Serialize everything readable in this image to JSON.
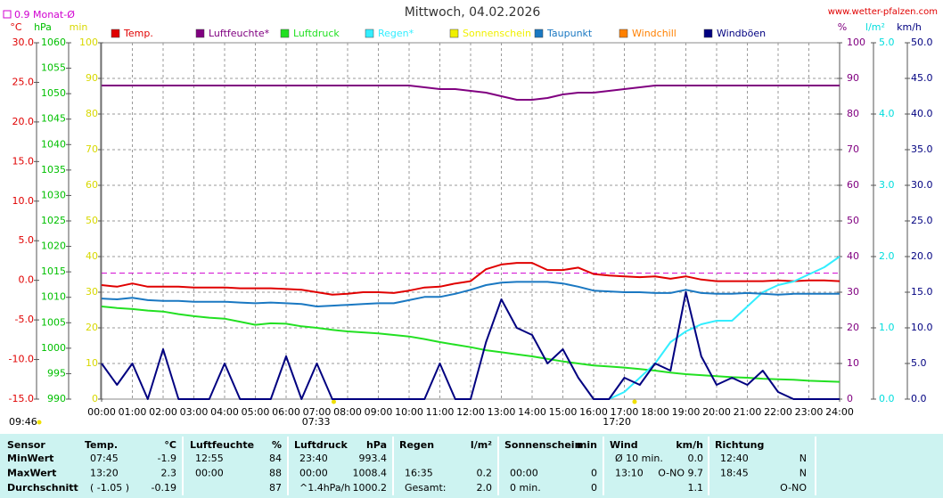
{
  "chart_data": {
    "type": "line",
    "title": "Mittwoch, 04.02.2026",
    "site": "www.wetter-pfalzen.com",
    "reference": {
      "value": 0.9,
      "label": "0.9 Monat-Ø",
      "color": "#d000d0",
      "axis": 0
    },
    "grid": true,
    "x": [
      0,
      0.5,
      1,
      1.5,
      2,
      2.5,
      3,
      3.5,
      4,
      4.5,
      5,
      5.5,
      6,
      6.5,
      7,
      7.5,
      8,
      8.5,
      9,
      9.5,
      10,
      10.5,
      11,
      11.5,
      12,
      12.5,
      13,
      13.5,
      14,
      14.5,
      15,
      15.5,
      16,
      16.5,
      17,
      17.5,
      18,
      18.5,
      19,
      19.5,
      20,
      20.5,
      21,
      21.5,
      22,
      22.5,
      23,
      23.5,
      24
    ],
    "xlim": [
      0,
      24
    ],
    "xticks": [
      {
        "value": 0,
        "label": "00:00"
      },
      {
        "value": 1,
        "label": "01:00"
      },
      {
        "value": 2,
        "label": "02:00"
      },
      {
        "value": 3,
        "label": "03:00"
      },
      {
        "value": 4,
        "label": "04:00"
      },
      {
        "value": 5,
        "label": "05:00"
      },
      {
        "value": 6,
        "label": "06:00"
      },
      {
        "value": 7,
        "label": "07:00"
      },
      {
        "value": 8,
        "label": "08:00"
      },
      {
        "value": 9,
        "label": "09:00"
      },
      {
        "value": 10,
        "label": "10:00"
      },
      {
        "value": 11,
        "label": "11:00"
      },
      {
        "value": 12,
        "label": "12:00"
      },
      {
        "value": 13,
        "label": "13:00"
      },
      {
        "value": 14,
        "label": "14:00"
      },
      {
        "value": 15,
        "label": "15:00"
      },
      {
        "value": 16,
        "label": "16:00"
      },
      {
        "value": 17,
        "label": "17:00"
      },
      {
        "value": 18,
        "label": "18:00"
      },
      {
        "value": 19,
        "label": "19:00"
      },
      {
        "value": 20,
        "label": "20:00"
      },
      {
        "value": 21,
        "label": "21:00"
      },
      {
        "value": 22,
        "label": "22:00"
      },
      {
        "value": 23,
        "label": "23:00"
      },
      {
        "value": 24,
        "label": "24:00"
      }
    ],
    "sun_marks": [
      {
        "value": 7.55,
        "label": "07:33"
      },
      {
        "value": 17.333,
        "label": "17:20"
      }
    ],
    "day_length": "09:46",
    "axes": [
      {
        "unit": "°C",
        "color": "#e00000",
        "lim": [
          -15,
          30
        ],
        "ticks": [
          {
            "value": -15,
            "label": "-15.0"
          },
          {
            "value": -10,
            "label": "-10.0"
          },
          {
            "value": -5,
            "label": "-5.0"
          },
          {
            "value": 0,
            "label": "0.0"
          },
          {
            "value": 5,
            "label": "5.0"
          },
          {
            "value": 10,
            "label": "10.0"
          },
          {
            "value": 15,
            "label": "15.0"
          },
          {
            "value": 20,
            "label": "20.0"
          },
          {
            "value": 25,
            "label": "25.0"
          },
          {
            "value": 30,
            "label": "30.0"
          }
        ]
      },
      {
        "unit": "hPa",
        "color": "#00c000",
        "lim": [
          990,
          1060
        ],
        "ticks": [
          990,
          995,
          1000,
          1005,
          1010,
          1015,
          1020,
          1025,
          1030,
          1035,
          1040,
          1045,
          1050,
          1055,
          1060
        ]
      },
      {
        "unit": "min",
        "color": "#d8d800",
        "lim": [
          0,
          100
        ],
        "ticks": [
          0,
          10,
          20,
          30,
          40,
          50,
          60,
          70,
          80,
          90,
          100
        ]
      },
      {
        "unit": "%",
        "color": "#800080",
        "lim": [
          0,
          100
        ],
        "ticks": [
          0,
          10,
          20,
          30,
          40,
          50,
          60,
          70,
          80,
          90,
          100
        ]
      },
      {
        "unit": "l/m²",
        "color": "#00dddd",
        "lim": [
          0,
          5
        ],
        "ticks": [
          {
            "value": 0,
            "label": "0.0"
          },
          {
            "value": 1,
            "label": "1.0"
          },
          {
            "value": 2,
            "label": "2.0"
          },
          {
            "value": 3,
            "label": "3.0"
          },
          {
            "value": 4,
            "label": "4.0"
          },
          {
            "value": 5,
            "label": "5.0"
          }
        ]
      },
      {
        "unit": "km/h",
        "color": "#000080",
        "lim": [
          0,
          50
        ],
        "ticks": [
          {
            "value": 0,
            "label": "0.0"
          },
          {
            "value": 5,
            "label": "5.0"
          },
          {
            "value": 10,
            "label": "10.0"
          },
          {
            "value": 15,
            "label": "15.0"
          },
          {
            "value": 20,
            "label": "20.0"
          },
          {
            "value": 25,
            "label": "25.0"
          },
          {
            "value": 30,
            "label": "30.0"
          },
          {
            "value": 35,
            "label": "35.0"
          },
          {
            "value": 40,
            "label": "40.0"
          },
          {
            "value": 45,
            "label": "45.0"
          },
          {
            "value": 50,
            "label": "50.0"
          }
        ]
      }
    ],
    "series": [
      {
        "name": "Temp.",
        "color": "#e00000",
        "axis": 0,
        "values": [
          -0.6,
          -0.8,
          -0.4,
          -0.8,
          -0.8,
          -0.8,
          -0.9,
          -0.9,
          -0.9,
          -1.0,
          -1.0,
          -1.0,
          -1.1,
          -1.2,
          -1.5,
          -1.8,
          -1.7,
          -1.5,
          -1.5,
          -1.6,
          -1.3,
          -0.9,
          -0.8,
          -0.4,
          -0.1,
          1.4,
          2.0,
          2.2,
          2.2,
          1.3,
          1.3,
          1.6,
          0.8,
          0.6,
          0.5,
          0.4,
          0.5,
          0.2,
          0.5,
          0.1,
          -0.1,
          -0.1,
          -0.1,
          -0.1,
          0.0,
          -0.1,
          0.0,
          0.0,
          -0.1
        ]
      },
      {
        "name": "Luftfeuchte*",
        "color": "#800080",
        "axis": 3,
        "values": [
          88,
          88,
          88,
          88,
          88,
          88,
          88,
          88,
          88,
          88,
          88,
          88,
          88,
          88,
          88,
          88,
          88,
          88,
          88,
          88,
          88,
          87.5,
          87,
          87,
          86.5,
          86,
          85,
          84,
          84,
          84.5,
          85.5,
          86,
          86,
          86.5,
          87,
          87.5,
          88,
          88,
          88,
          88,
          88,
          88,
          88,
          88,
          88,
          88,
          88,
          88,
          88
        ]
      },
      {
        "name": "Luftdruck",
        "color": "#22e022",
        "axis": 1,
        "values": [
          1008.2,
          1007.9,
          1007.7,
          1007.4,
          1007.2,
          1006.7,
          1006.3,
          1006.0,
          1005.8,
          1005.2,
          1004.6,
          1004.9,
          1004.8,
          1004.3,
          1004.0,
          1003.6,
          1003.3,
          1003.1,
          1002.9,
          1002.6,
          1002.3,
          1001.8,
          1001.2,
          1000.7,
          1000.2,
          999.6,
          999.2,
          998.8,
          998.4,
          997.9,
          997.4,
          997.0,
          996.6,
          996.4,
          996.2,
          995.9,
          995.6,
          995.2,
          994.9,
          994.7,
          994.5,
          994.3,
          994.2,
          994.0,
          993.9,
          993.8,
          993.6,
          993.5,
          993.4
        ]
      },
      {
        "name": "Regen*",
        "color": "#33eeff",
        "axis": 4,
        "values": [
          null,
          null,
          null,
          null,
          null,
          null,
          null,
          null,
          null,
          null,
          null,
          null,
          null,
          null,
          null,
          null,
          null,
          null,
          null,
          null,
          null,
          null,
          null,
          null,
          null,
          null,
          null,
          null,
          null,
          null,
          null,
          null,
          null,
          0,
          0.1,
          0.3,
          0.5,
          0.8,
          0.95,
          1.05,
          1.1,
          1.1,
          1.3,
          1.5,
          1.6,
          1.65,
          1.75,
          1.85,
          2.0
        ]
      },
      {
        "name": "Sonnenschein",
        "color": "#f0f000",
        "axis": 2
      },
      {
        "name": "Taupunkt",
        "color": "#1a78c2",
        "axis": 0,
        "values": [
          -2.3,
          -2.4,
          -2.2,
          -2.5,
          -2.6,
          -2.6,
          -2.7,
          -2.7,
          -2.7,
          -2.8,
          -2.9,
          -2.8,
          -2.9,
          -3.0,
          -3.3,
          -3.2,
          -3.1,
          -3.0,
          -2.9,
          -2.9,
          -2.5,
          -2.1,
          -2.1,
          -1.7,
          -1.2,
          -0.6,
          -0.3,
          -0.2,
          -0.2,
          -0.2,
          -0.4,
          -0.8,
          -1.3,
          -1.4,
          -1.5,
          -1.5,
          -1.6,
          -1.6,
          -1.2,
          -1.6,
          -1.7,
          -1.7,
          -1.6,
          -1.7,
          -1.8,
          -1.7,
          -1.7,
          -1.7,
          -1.7
        ]
      },
      {
        "name": "Windchill",
        "color": "#ff8000",
        "axis": 0
      },
      {
        "name": "Windböen",
        "color": "#000080",
        "axis": 5,
        "values": [
          5,
          2,
          5,
          0,
          7,
          0,
          0,
          0,
          5,
          0,
          0,
          0,
          6,
          0,
          5,
          0,
          0,
          0,
          0,
          0,
          0,
          0,
          5,
          0,
          0,
          8,
          14,
          10,
          9,
          5,
          7,
          3,
          0,
          0,
          3,
          2,
          5,
          4,
          15,
          6,
          2,
          3,
          2,
          4,
          1,
          0,
          0,
          0,
          0
        ]
      }
    ]
  },
  "table": {
    "headers": [
      [
        "Sensor"
      ],
      [
        "Temp.",
        "°C"
      ],
      [
        "Luftfeuchte",
        "%"
      ],
      [
        "Luftdruck",
        "hPa"
      ],
      [
        "Regen",
        "l/m²"
      ],
      [
        "Sonnenschein",
        "min"
      ],
      [
        "Wind",
        "km/h"
      ],
      [
        "Richtung"
      ]
    ],
    "rows": [
      {
        "label": "MinWert",
        "cells": [
          [
            "07:45",
            "-1.9"
          ],
          [
            "12:55",
            "84"
          ],
          [
            "23:40",
            "993.4"
          ],
          [
            null,
            null
          ],
          [
            null,
            null
          ],
          [
            "Ø 10 min.",
            "0.0"
          ],
          [
            "12:40",
            "N"
          ]
        ]
      },
      {
        "label": "MaxWert",
        "cells": [
          [
            "13:20",
            "2.3"
          ],
          [
            "00:00",
            "88"
          ],
          [
            "00:00",
            "1008.4"
          ],
          [
            "16:35",
            "0.2"
          ],
          [
            "00:00",
            "0"
          ],
          [
            "13:10",
            "O-NO 9.7"
          ],
          [
            "18:45",
            "N"
          ]
        ]
      },
      {
        "label": "Durchschnitt",
        "cells": [
          [
            "( -1.05 )",
            "-0.19"
          ],
          [
            null,
            "87"
          ],
          [
            "^1.4hPa/h",
            "1000.2"
          ],
          [
            "Gesamt:",
            "2.0"
          ],
          [
            "0 min.",
            "0"
          ],
          [
            null,
            "1.1"
          ],
          [
            null,
            "O-NO"
          ]
        ]
      }
    ]
  }
}
